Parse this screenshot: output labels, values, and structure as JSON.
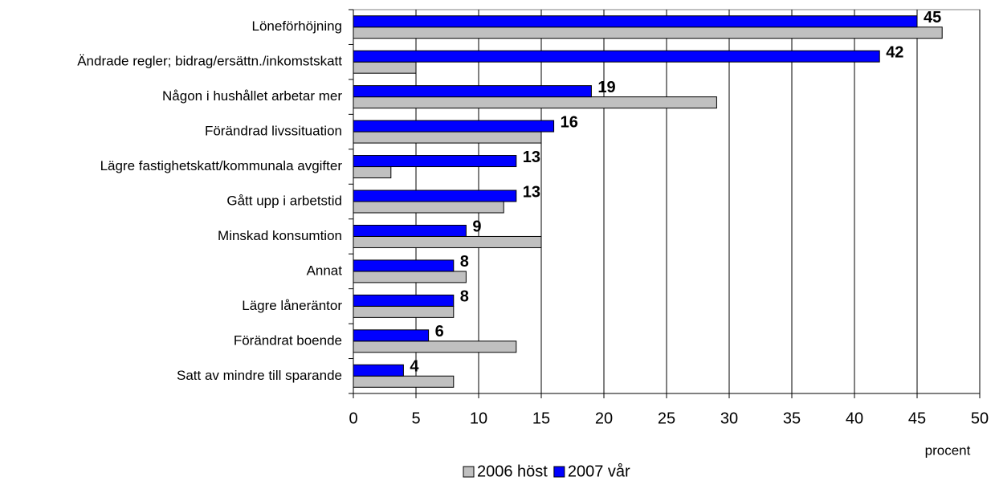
{
  "chart_data": {
    "type": "hbar",
    "categories": [
      "Löneförhöjning",
      "Ändrade regler; bidrag/ersättn./inkomstskatt",
      "Någon i hushållet arbetar mer",
      "Förändrad livssituation",
      "Lägre fastighetskatt/kommunala avgifter",
      "Gått upp i arbetstid",
      "Minskad konsumtion",
      "Annat",
      "Lägre låneräntor",
      "Förändrat boende",
      "Satt av mindre till sparande"
    ],
    "series": [
      {
        "name": "2006 höst",
        "color": "#c0c0c0",
        "data_labels": false,
        "values": [
          47,
          5,
          29,
          15,
          3,
          12,
          15,
          9,
          8,
          13,
          8
        ]
      },
      {
        "name": "2007 vår",
        "color": "#0000ff",
        "data_labels": true,
        "values": [
          45,
          42,
          19,
          16,
          13,
          13,
          9,
          8,
          8,
          6,
          4
        ]
      }
    ],
    "xlabel": "procent",
    "xlim": [
      0,
      50
    ],
    "xticks": [
      0,
      5,
      10,
      15,
      20,
      25,
      30,
      35,
      40,
      45,
      50
    ],
    "grid": true,
    "legend": "bottom"
  }
}
